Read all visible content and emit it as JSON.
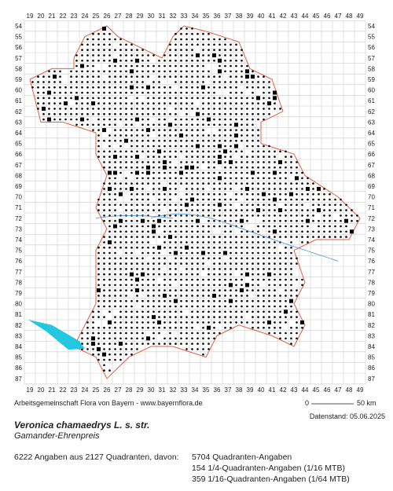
{
  "map": {
    "columns": [
      19,
      20,
      21,
      22,
      23,
      24,
      25,
      26,
      27,
      28,
      29,
      30,
      31,
      32,
      33,
      34,
      35,
      36,
      37,
      38,
      39,
      40,
      41,
      42,
      43,
      44,
      45,
      46,
      47,
      48,
      49
    ],
    "rows": [
      54,
      55,
      56,
      57,
      58,
      59,
      60,
      61,
      62,
      63,
      64,
      65,
      66,
      67,
      68,
      69,
      70,
      71,
      72,
      73,
      74,
      75,
      76,
      77,
      78,
      79,
      80,
      81,
      82,
      83,
      84,
      85,
      86,
      87
    ]
  },
  "credit": "Arbeitsgemeinschaft Flora von Bayern - www.bayernflora.de",
  "scale": {
    "start": "0",
    "end": "50 km"
  },
  "date": "Datenstand: 05.06.2025",
  "species": {
    "name": "Veronica chamaedrys L. s. str.",
    "common": "Gamander-Ehrenpreis"
  },
  "stats": {
    "summary": "6222 Angaben aus 2127 Quadranten, davon:",
    "lines": [
      "5704 Quadranten-Angaben",
      "154 1/4-Quadranten-Angaben (1/16 MTB)",
      "359 1/16-Quadranten-Angaben (1/64 MTB)"
    ]
  }
}
